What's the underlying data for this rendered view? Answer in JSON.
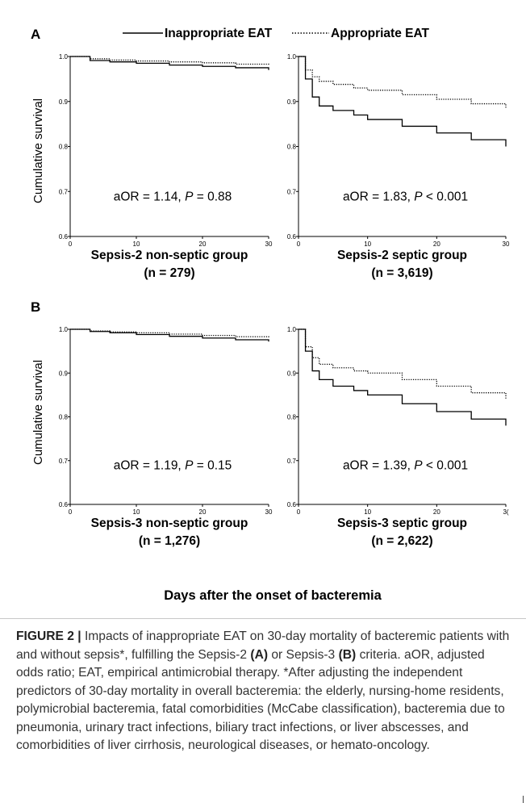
{
  "legend": {
    "inappropriate": "Inappropriate EAT",
    "appropriate": "Appropriate EAT"
  },
  "panel_labels": {
    "a": "A",
    "b": "B"
  },
  "y_label": "Cumulative survival",
  "x_label": "Days after the onset of bacteremia",
  "caption": {
    "lead": "FIGURE 2 |",
    "t1": " Impacts of inappropriate EAT on 30-day mortality of bacteremic patients with and without sepsis*, fulfilling the Sepsis-2 ",
    "b1": "(A)",
    "t2": " or Sepsis-3 ",
    "b2": "(B)",
    "t3": " criteria. aOR, adjusted odds ratio; EAT, empirical antimicrobial therapy. *After adjusting the independent predictors of 30-day mortality in overall bacteremia: the elderly, nursing-home residents, polymicrobial bacteremia, fatal comorbidities (McCabe classification), bacteremia due to pneumonia, urinary tract infections, biliary tract infections, or liver abscesses, and comorbidities of liver cirrhosis, neurological diseases, or hemato-oncology."
  },
  "chart_data": [
    {
      "type": "line",
      "panel": "A",
      "title": "Sepsis-2 non-septic group",
      "n_label": "(n = 279)",
      "annotation": {
        "prefix": "aOR = 1.14, ",
        "p": "P",
        "suffix": " = 0.88"
      },
      "x_ticks": [
        "0",
        "10",
        "20",
        "30"
      ],
      "y_ticks": [
        "1.0",
        "0.9",
        "0.8",
        "0.7",
        "0.6"
      ],
      "xlim": [
        0,
        30
      ],
      "ylim": [
        0.6,
        1.0
      ],
      "series": [
        {
          "name": "Inappropriate EAT",
          "style": "solid",
          "x": [
            0,
            3,
            6,
            10,
            15,
            20,
            25,
            30
          ],
          "y": [
            1.0,
            0.991,
            0.988,
            0.985,
            0.981,
            0.978,
            0.975,
            0.97
          ]
        },
        {
          "name": "Appropriate EAT",
          "style": "dotted",
          "x": [
            0,
            3,
            6,
            10,
            15,
            20,
            25,
            30
          ],
          "y": [
            1.0,
            0.995,
            0.992,
            0.99,
            0.988,
            0.986,
            0.983,
            0.98
          ]
        }
      ]
    },
    {
      "type": "line",
      "panel": "A",
      "title": "Sepsis-2 septic group",
      "n_label": "(n = 3,619)",
      "annotation": {
        "prefix": "aOR = 1.83, ",
        "p": "P",
        "suffix": " < 0.001"
      },
      "x_ticks": [
        "0",
        "10",
        "20",
        "30"
      ],
      "y_ticks": [
        "1.0",
        "0.9",
        "0.8",
        "0.7",
        "0.6"
      ],
      "xlim": [
        0,
        30
      ],
      "ylim": [
        0.6,
        1.0
      ],
      "series": [
        {
          "name": "Inappropriate EAT",
          "style": "solid",
          "x": [
            0,
            1,
            2,
            3,
            5,
            8,
            10,
            15,
            20,
            25,
            30
          ],
          "y": [
            1.0,
            0.95,
            0.91,
            0.89,
            0.88,
            0.87,
            0.86,
            0.845,
            0.83,
            0.815,
            0.8
          ]
        },
        {
          "name": "Appropriate EAT",
          "style": "dotted",
          "x": [
            0,
            1,
            2,
            3,
            5,
            8,
            10,
            15,
            20,
            25,
            30
          ],
          "y": [
            1.0,
            0.97,
            0.955,
            0.945,
            0.938,
            0.93,
            0.925,
            0.915,
            0.905,
            0.895,
            0.885
          ]
        }
      ]
    },
    {
      "type": "line",
      "panel": "B",
      "title": "Sepsis-3 non-septic group",
      "n_label": "(n = 1,276)",
      "annotation": {
        "prefix": "aOR = 1.19, ",
        "p": "P",
        "suffix": " = 0.15"
      },
      "x_ticks": [
        "0",
        "10",
        "20",
        "30"
      ],
      "y_ticks": [
        "1.0",
        "0.9",
        "0.8",
        "0.7",
        "0.6"
      ],
      "xlim": [
        0,
        30
      ],
      "ylim": [
        0.6,
        1.0
      ],
      "series": [
        {
          "name": "Inappropriate EAT",
          "style": "solid",
          "x": [
            0,
            3,
            6,
            10,
            15,
            20,
            25,
            30
          ],
          "y": [
            1.0,
            0.995,
            0.992,
            0.988,
            0.984,
            0.98,
            0.976,
            0.972
          ]
        },
        {
          "name": "Appropriate EAT",
          "style": "dotted",
          "x": [
            0,
            3,
            6,
            10,
            15,
            20,
            25,
            30
          ],
          "y": [
            1.0,
            0.996,
            0.994,
            0.992,
            0.989,
            0.986,
            0.983,
            0.98
          ]
        }
      ]
    },
    {
      "type": "line",
      "panel": "B",
      "title": "Sepsis-3 septic group",
      "n_label": "(n = 2,622)",
      "annotation": {
        "prefix": "aOR = 1.39, ",
        "p": "P",
        "suffix": " < 0.001"
      },
      "x_ticks": [
        "0",
        "10",
        "20",
        "3("
      ],
      "y_ticks": [
        "1.0",
        "0.9",
        "0.8",
        "0.7",
        "0.6"
      ],
      "xlim": [
        0,
        30
      ],
      "ylim": [
        0.6,
        1.0
      ],
      "series": [
        {
          "name": "Inappropriate EAT",
          "style": "solid",
          "x": [
            0,
            1,
            2,
            3,
            5,
            8,
            10,
            15,
            20,
            25,
            30
          ],
          "y": [
            1.0,
            0.95,
            0.905,
            0.885,
            0.87,
            0.86,
            0.85,
            0.83,
            0.812,
            0.795,
            0.78
          ]
        },
        {
          "name": "Appropriate EAT",
          "style": "dotted",
          "x": [
            0,
            1,
            2,
            3,
            5,
            8,
            10,
            15,
            20,
            25,
            30
          ],
          "y": [
            1.0,
            0.96,
            0.935,
            0.92,
            0.912,
            0.905,
            0.9,
            0.885,
            0.87,
            0.855,
            0.84
          ]
        }
      ]
    }
  ]
}
